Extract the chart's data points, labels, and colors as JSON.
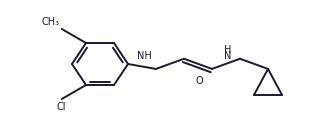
{
  "bg_color": "#ffffff",
  "line_color": "#1a1a2e",
  "line_width": 1.4,
  "font_size": 7.0,
  "figsize": [
    3.24,
    1.32
  ],
  "dpi": 100,
  "xlim": [
    0,
    324
  ],
  "ylim": [
    0,
    132
  ]
}
